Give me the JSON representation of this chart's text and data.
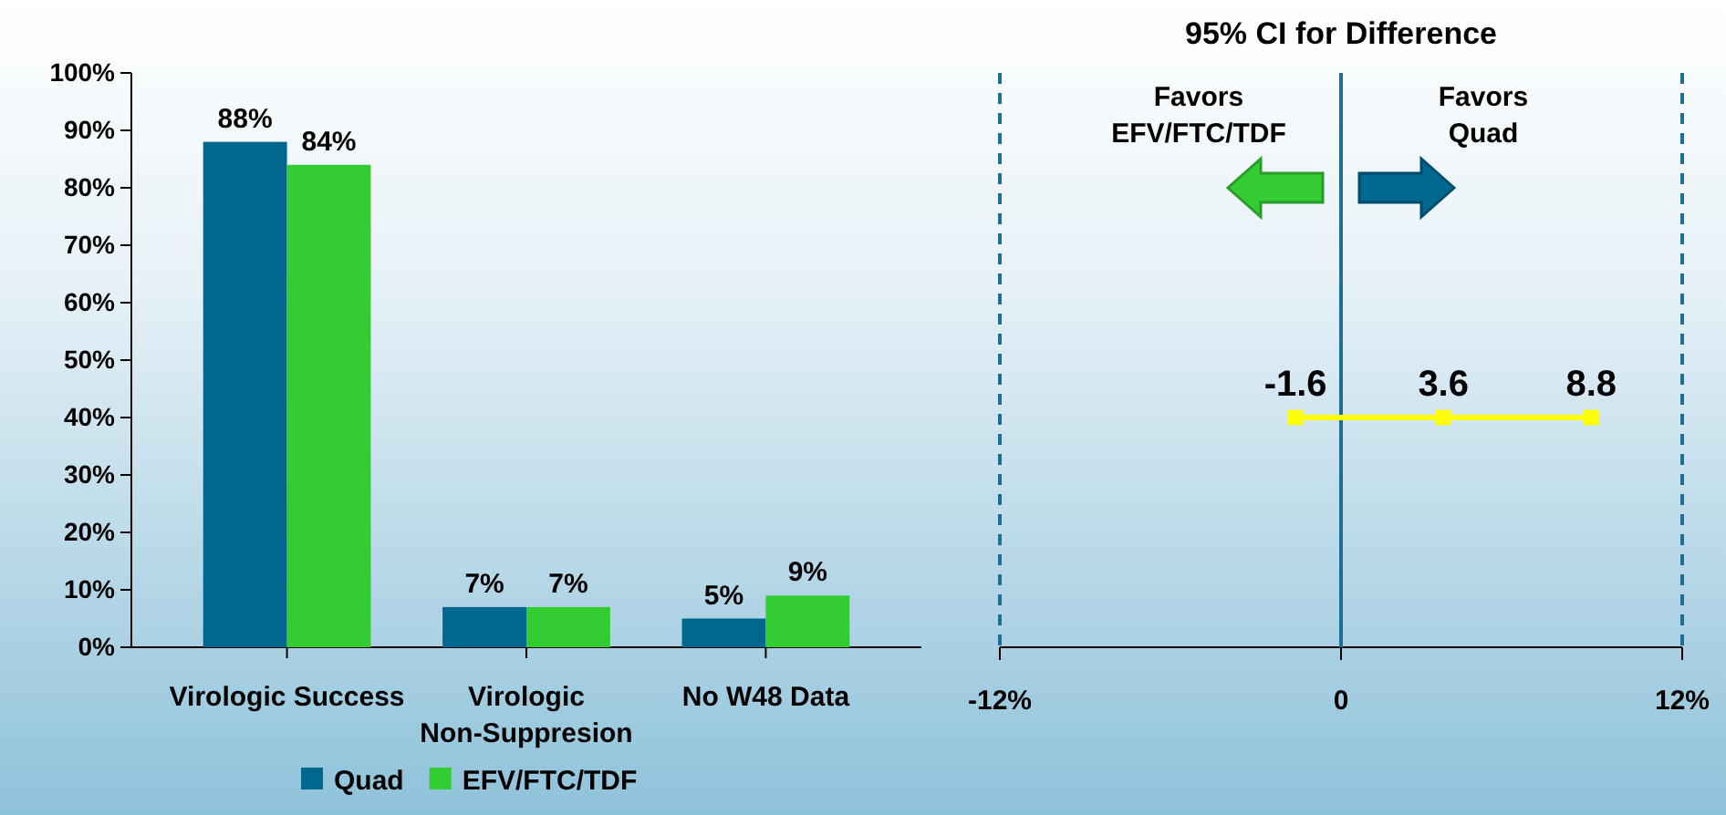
{
  "chart_data": [
    {
      "type": "bar",
      "categories": [
        "Virologic Success",
        "Virologic Non-Suppresion",
        "No W48 Data"
      ],
      "series": [
        {
          "name": "Quad",
          "color": "#00678f",
          "values": [
            88,
            7,
            5
          ]
        },
        {
          "name": "EFV/FTC/TDF",
          "color": "#33cc33",
          "values": [
            84,
            7,
            9
          ]
        }
      ],
      "ylim": [
        0,
        100
      ],
      "yticks": [
        {
          "value": 0,
          "label": "0%"
        },
        {
          "value": 10,
          "label": "10%"
        },
        {
          "value": 20,
          "label": "20%"
        },
        {
          "value": 30,
          "label": "30%"
        },
        {
          "value": 40,
          "label": "40%"
        },
        {
          "value": 50,
          "label": "50%"
        },
        {
          "value": 60,
          "label": "60%"
        },
        {
          "value": 70,
          "label": "70%"
        },
        {
          "value": 80,
          "label": "80%"
        },
        {
          "value": 90,
          "label": "90%"
        },
        {
          "value": 100,
          "label": "100%"
        }
      ],
      "value_labels": [
        [
          "88%",
          "7%",
          "5%"
        ],
        [
          "84%",
          "7%",
          "9%"
        ]
      ],
      "grid": false,
      "legend": "bottom"
    },
    {
      "type": "line",
      "title": "95% CI for Difference",
      "ylim": [
        0,
        100
      ],
      "series": [
        {
          "color": "#ffff00",
          "x": [
            -1.6,
            3.6,
            8.8
          ],
          "values": [
            40,
            40,
            40
          ]
        }
      ],
      "xlim": [
        -12,
        12
      ],
      "xticks": [
        {
          "value": -12,
          "label": "-12%"
        },
        0,
        {
          "value": 12,
          "label": "12%"
        }
      ],
      "ref_lines": [
        {
          "axis": "x",
          "value": -12,
          "color": "#1f6e96",
          "line_style": "dashed"
        },
        {
          "axis": "x",
          "value": 0,
          "color": "#1f6e96",
          "line_style": "solid"
        },
        {
          "axis": "x",
          "value": 12,
          "color": "#1f6e96",
          "line_style": "dashed"
        }
      ],
      "annotations": [
        "Favors EFV/FTC/TDF",
        "Favors Quad",
        {
          "text": "-1.6",
          "x": -1.6,
          "y": 40
        },
        {
          "text": "3.6",
          "x": 3.6,
          "y": 40
        },
        {
          "text": "8.8",
          "x": 8.8,
          "y": 40
        }
      ],
      "marker": "square",
      "tick_labels": "x"
    }
  ]
}
